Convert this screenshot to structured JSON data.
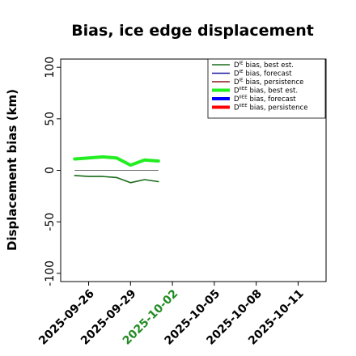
{
  "chart_data": {
    "type": "line",
    "title": "Bias, ice edge displacement",
    "xlabel": "",
    "ylabel": "Displacement bias (km)",
    "ylim": [
      -108,
      108
    ],
    "xlim": [
      "2025-09-24",
      "2025-10-13"
    ],
    "x_ticks": [
      {
        "label": "2025-09-26",
        "color": "#000000"
      },
      {
        "label": "2025-09-29",
        "color": "#000000"
      },
      {
        "label": "2025-10-02",
        "color": "#228B22"
      },
      {
        "label": "2025-10-05",
        "color": "#000000"
      },
      {
        "label": "2025-10-08",
        "color": "#000000"
      },
      {
        "label": "2025-10-11",
        "color": "#000000"
      }
    ],
    "y_ticks": [
      -100,
      -50,
      0,
      50,
      100
    ],
    "grid": false,
    "legend_position": "top-right",
    "zero_line": true,
    "series": [
      {
        "name": "D^IE bias, best est.",
        "legend_sup": "IE",
        "legend_text": "bias, best est.",
        "color": "#1a6b1a",
        "width": 1.6,
        "x": [
          "2025-09-25",
          "2025-09-26",
          "2025-09-27",
          "2025-09-28",
          "2025-09-29",
          "2025-09-30",
          "2025-10-01"
        ],
        "values": [
          -5,
          -6,
          -6,
          -7,
          -12,
          -9,
          -11
        ]
      },
      {
        "name": "D^IE bias, forecast",
        "legend_sup": "IE",
        "legend_text": "bias, forecast",
        "color": "#1a1aa0",
        "width": 1.6,
        "x": [],
        "values": []
      },
      {
        "name": "D^IE bias, persistence",
        "legend_sup": "IE",
        "legend_text": "bias, persistence",
        "color": "#8b1a1a",
        "width": 1.6,
        "x": [],
        "values": []
      },
      {
        "name": "D^IIEE bias, best est.",
        "legend_sup": "IIEE",
        "legend_text": "bias, best est.",
        "color": "#22ee22",
        "width": 4,
        "x": [
          "2025-09-25",
          "2025-09-26",
          "2025-09-27",
          "2025-09-28",
          "2025-09-29",
          "2025-09-30",
          "2025-10-01"
        ],
        "values": [
          11,
          12,
          13,
          12,
          5,
          10,
          9
        ]
      },
      {
        "name": "D^IIEE bias, forecast",
        "legend_sup": "IIEE",
        "legend_text": "bias, forecast",
        "color": "#0000ff",
        "width": 4,
        "x": [],
        "values": []
      },
      {
        "name": "D^IIEE bias, persistence",
        "legend_sup": "IIEE",
        "legend_text": "bias, persistence",
        "color": "#ff0000",
        "width": 4,
        "x": [],
        "values": []
      }
    ]
  }
}
